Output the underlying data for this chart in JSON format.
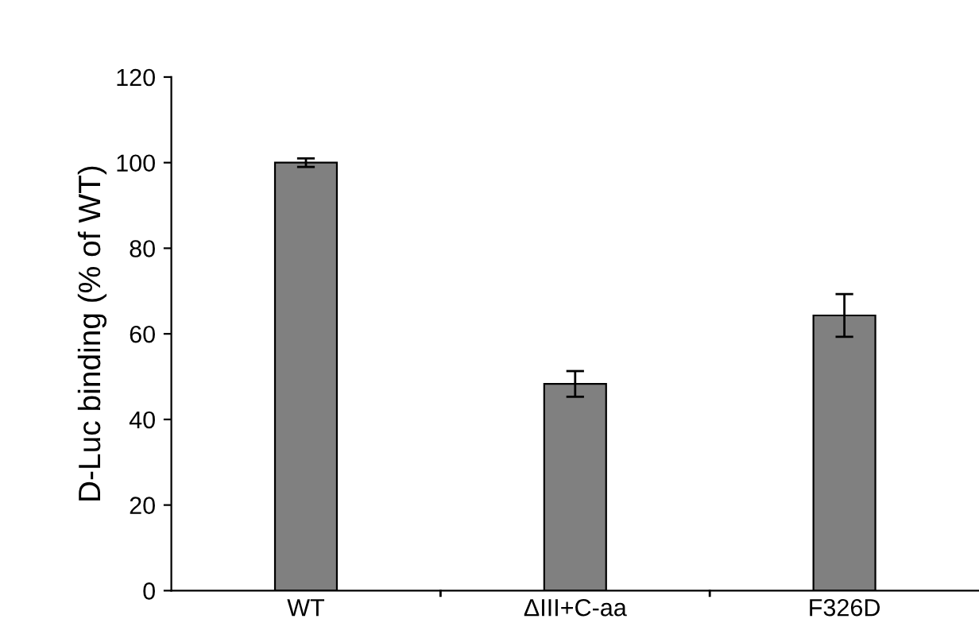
{
  "chart_data": {
    "type": "bar",
    "ylabel": "D-Luc binding (% of WT)",
    "categories": [
      "WT",
      "ΔIII+C-aa",
      "F326D"
    ],
    "values": [
      100,
      48.3,
      64.3
    ],
    "errors": [
      1,
      3,
      5
    ],
    "color": "#808080",
    "ylim": [
      0,
      120
    ],
    "yticks": [
      0,
      20,
      40,
      60,
      80,
      100,
      120
    ],
    "grid": false,
    "legend": false
  }
}
